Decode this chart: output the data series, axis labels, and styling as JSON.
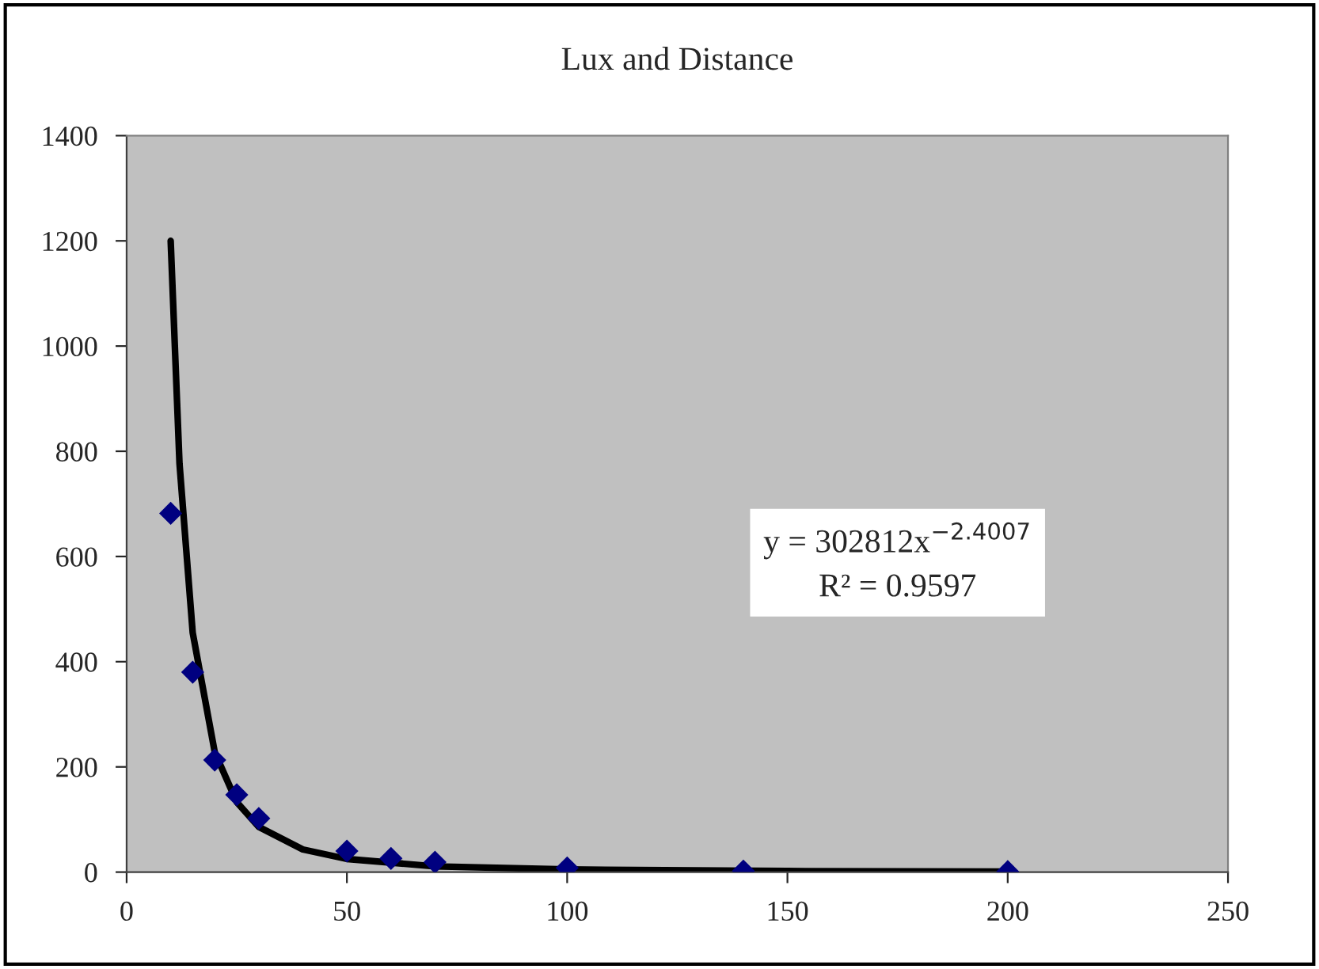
{
  "chart_data": {
    "type": "scatter",
    "title": "Lux and Distance",
    "xlim": [
      0,
      250
    ],
    "xticks": [
      0,
      50,
      100,
      150,
      200,
      250
    ],
    "ylim": [
      0,
      1400
    ],
    "yticks": [
      0,
      200,
      400,
      600,
      800,
      1000,
      1200,
      1400
    ],
    "grid": false,
    "legend": false,
    "series": [
      {
        "color": "#000080",
        "marker": "diamond",
        "x": [
          10,
          15,
          20,
          25,
          30,
          50,
          60,
          70,
          100,
          140,
          200
        ],
        "values": [
          682,
          380,
          213,
          147,
          102,
          40,
          26,
          19,
          8,
          2,
          1
        ]
      },
      {
        "type": "line",
        "color": "#000000",
        "marker": "none",
        "line_style": "solid",
        "x": [
          10,
          12,
          15,
          20,
          25,
          30,
          40,
          50,
          70,
          100,
          150,
          200
        ],
        "values": [
          1200,
          777,
          455,
          228,
          133,
          86,
          43,
          25,
          11,
          5,
          2,
          1
        ]
      }
    ],
    "annotations": [
      "y = 302812x$^{−2.4007}$",
      "R² = 0.9597"
    ]
  }
}
